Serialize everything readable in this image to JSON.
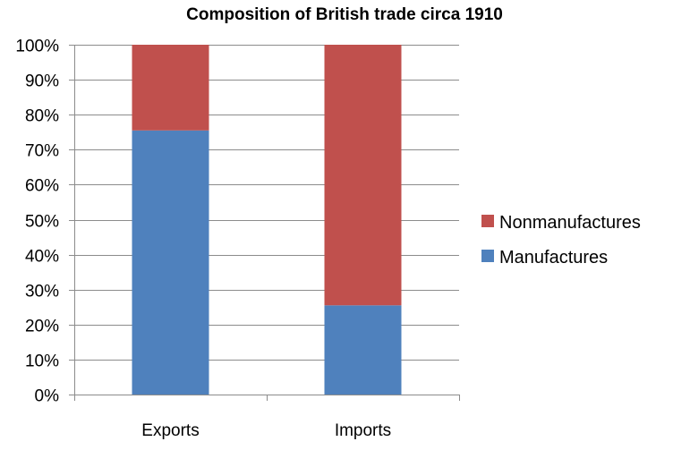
{
  "chart_data": {
    "type": "bar",
    "stacked": true,
    "title": "Composition of British trade circa 1910",
    "categories": [
      "Exports",
      "Imports"
    ],
    "series": [
      {
        "name": "Manufactures",
        "values": [
          75.5,
          25.5
        ],
        "color": "#4f81bd"
      },
      {
        "name": "Nonmanufactures",
        "values": [
          24.5,
          74.5
        ],
        "color": "#c0504d"
      }
    ],
    "ylim": [
      0,
      100
    ],
    "yticks": [
      "0%",
      "10%",
      "20%",
      "30%",
      "40%",
      "50%",
      "60%",
      "70%",
      "80%",
      "90%",
      "100%"
    ],
    "grid": true,
    "legend_position": "right"
  }
}
